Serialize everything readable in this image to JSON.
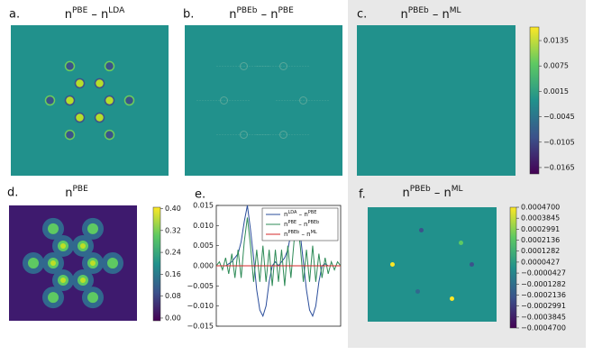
{
  "chart_data": [
    {
      "type": "heatmap",
      "panel": "a.",
      "title": [
        "n",
        "PBE",
        " – n",
        "LDA"
      ]
    },
    {
      "type": "heatmap",
      "panel": "b.",
      "title": [
        "n",
        "PBEb",
        " – n",
        "PBE"
      ]
    },
    {
      "type": "heatmap",
      "panel": "c.",
      "title": [
        "n",
        "PBEb",
        " – n",
        "ML"
      ],
      "clim": [
        -0.018,
        0.0167
      ],
      "cticks": [
        0.0135,
        0.0075,
        0.0015,
        {
          "value": -0.0045,
          "label": "−0.0045"
        },
        {
          "value": -0.0105,
          "label": "−0.0105"
        },
        {
          "value": -0.0165,
          "label": "−0.0165"
        }
      ]
    },
    {
      "type": "heatmap",
      "panel": "d.",
      "title": [
        "n",
        "PBE"
      ],
      "clim": [
        -0.01,
        0.405
      ],
      "cticks": [
        {
          "value": 0.4,
          "label": "0.40"
        },
        0.32,
        0.24,
        0.16,
        0.08,
        {
          "value": 0,
          "label": "0.00"
        }
      ]
    },
    {
      "type": "line",
      "panel": "e.",
      "ylim": [
        -0.015,
        0.015
      ],
      "yticks": [
        0.015,
        {
          "value": 0.01,
          "label": "0.010"
        },
        0.005,
        {
          "value": 0,
          "label": "0.000"
        },
        {
          "value": -0.005,
          "label": "−0.005"
        },
        {
          "value": -0.01,
          "label": "−0.010"
        },
        {
          "value": -0.015,
          "label": "−0.015"
        }
      ],
      "legend": "upper right",
      "series": [
        {
          "name": [
            "n",
            "LDA",
            " – n",
            "PBE"
          ],
          "color": "#2a4d9b",
          "values": [
            0,
            0,
            0,
            0,
            0.0005,
            0.001,
            0.002,
            0.003,
            0.006,
            0.011,
            0.015,
            0.009,
            0.002,
            -0.006,
            -0.011,
            -0.0125,
            -0.01,
            -0.004,
            0,
            0.001,
            0,
            0.001,
            0.002,
            0.004,
            0.008,
            0.012,
            0.014,
            0.008,
            0.001,
            -0.006,
            -0.011,
            -0.0125,
            -0.01,
            -0.004,
            0,
            0.0005,
            0,
            0,
            0,
            0,
            0
          ]
        },
        {
          "name": [
            "n",
            "PBE",
            " – n",
            "PBEb"
          ],
          "color": "#2e8b57",
          "values": [
            0,
            0.001,
            -0.001,
            0.002,
            -0.002,
            0.003,
            -0.003,
            0.004,
            -0.003,
            0.006,
            0.012,
            0.005,
            -0.004,
            0.004,
            -0.004,
            0.005,
            -0.004,
            0.004,
            -0.005,
            0.004,
            -0.004,
            0.004,
            -0.005,
            0.005,
            -0.003,
            0.006,
            0.011,
            0.005,
            -0.004,
            0.004,
            -0.004,
            0.005,
            -0.004,
            0.003,
            -0.003,
            0.002,
            -0.002,
            0.001,
            -0.001,
            0.001,
            0
          ]
        },
        {
          "name": [
            "n",
            "PBEb",
            " – n",
            "ML"
          ],
          "color": "#d62728",
          "values": [
            0,
            0,
            0,
            0,
            0,
            0,
            0,
            0,
            0,
            0,
            0,
            0,
            0,
            0,
            0,
            0,
            0,
            0,
            0,
            0,
            0,
            0,
            0,
            0,
            0,
            0,
            0,
            0,
            0,
            0,
            0,
            0,
            0,
            0,
            0,
            0,
            0,
            0,
            0,
            0,
            0
          ]
        }
      ]
    },
    {
      "type": "heatmap",
      "panel": "f.",
      "title": [
        "n",
        "PBEb",
        " – n",
        "ML"
      ],
      "clim": [
        -0.00047,
        0.00047
      ],
      "cticks": [
        {
          "value": 0.00047,
          "label": "0.0004700"
        },
        {
          "value": 0.0003845,
          "label": "0.0003845"
        },
        {
          "value": 0.0002991,
          "label": "0.0002991"
        },
        {
          "value": 0.0002136,
          "label": "0.0002136"
        },
        {
          "value": 0.0001282,
          "label": "0.0001282"
        },
        {
          "value": 4.27e-05,
          "label": "0.0000427"
        },
        {
          "value": -4.27e-05,
          "label": "−0.0000427"
        },
        {
          "value": -0.0001282,
          "label": "−0.0001282"
        },
        {
          "value": -0.0002136,
          "label": "−0.0002136"
        },
        {
          "value": -0.0002991,
          "label": "−0.0002991"
        },
        {
          "value": -0.0003845,
          "label": "−0.0003845"
        },
        {
          "value": -0.00047,
          "label": "−0.0004700"
        }
      ]
    }
  ]
}
